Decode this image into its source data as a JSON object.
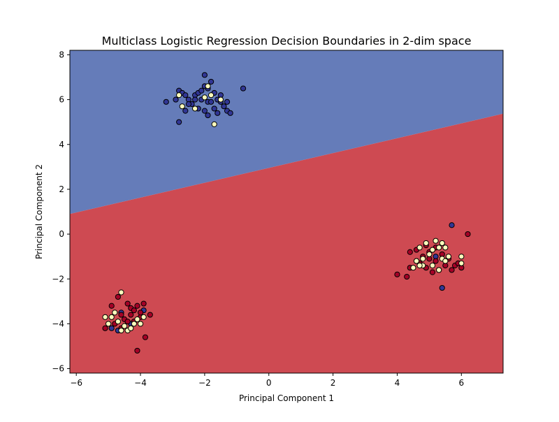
{
  "chart_data": {
    "type": "scatter",
    "title": "Multiclass Logistic Regression Decision Boundaries in 2-dim space",
    "xlabel": "Principal Component 1",
    "ylabel": "Principal Component 2",
    "xlim": [
      -6.2,
      7.3
    ],
    "ylim": [
      -6.2,
      8.2
    ],
    "xticks": [
      -6,
      -4,
      -2,
      0,
      2,
      4,
      6
    ],
    "yticks": [
      -6,
      -4,
      -2,
      0,
      2,
      4,
      6,
      8
    ],
    "grid": false,
    "legend": "none",
    "decision_boundary": {
      "points": [
        [
          -6.2,
          0.9
        ],
        [
          7.3,
          5.37
        ]
      ],
      "regions": [
        {
          "side": "above",
          "color": "#657cb9"
        },
        {
          "side": "below",
          "color": "#ce4a52"
        }
      ]
    },
    "series": [
      {
        "color": "#313695",
        "points": [
          [
            -2.9,
            6.0
          ],
          [
            -2.8,
            6.4
          ],
          [
            -2.7,
            6.3
          ],
          [
            -2.6,
            6.2
          ],
          [
            -2.5,
            6.0
          ],
          [
            -2.4,
            5.8
          ],
          [
            -2.3,
            6.2
          ],
          [
            -2.2,
            6.3
          ],
          [
            -2.1,
            6.4
          ],
          [
            -2.0,
            6.6
          ],
          [
            -1.9,
            6.5
          ],
          [
            -1.8,
            6.8
          ],
          [
            -1.7,
            6.3
          ],
          [
            -1.6,
            6.0
          ],
          [
            -1.5,
            5.9
          ],
          [
            -1.4,
            5.7
          ],
          [
            -1.3,
            5.5
          ],
          [
            -1.2,
            5.4
          ],
          [
            -1.9,
            5.9
          ],
          [
            -2.0,
            5.5
          ],
          [
            -2.2,
            5.6
          ],
          [
            -1.7,
            5.6
          ],
          [
            -1.6,
            5.4
          ],
          [
            -2.6,
            5.5
          ],
          [
            -2.8,
            5.0
          ],
          [
            -3.2,
            5.9
          ],
          [
            -0.8,
            6.5
          ],
          [
            -2.0,
            7.1
          ],
          [
            -1.8,
            5.9
          ],
          [
            -2.3,
            6.0
          ],
          [
            -1.5,
            6.2
          ],
          [
            -2.1,
            6.0
          ],
          [
            -1.3,
            5.9
          ],
          [
            -1.9,
            5.3
          ],
          [
            -2.5,
            5.8
          ],
          [
            -4.6,
            -3.5
          ],
          [
            -4.9,
            -4.2
          ],
          [
            -4.3,
            -4.0
          ],
          [
            -3.9,
            -3.4
          ],
          [
            -4.7,
            -4.3
          ],
          [
            5.7,
            0.4
          ],
          [
            5.4,
            -2.4
          ],
          [
            5.2,
            -1.0
          ]
        ]
      },
      {
        "color": "#a50026",
        "points": [
          [
            -5.1,
            -4.2
          ],
          [
            -4.9,
            -3.2
          ],
          [
            -4.7,
            -2.8
          ],
          [
            -4.6,
            -3.6
          ],
          [
            -4.5,
            -3.8
          ],
          [
            -4.4,
            -3.1
          ],
          [
            -4.3,
            -3.3
          ],
          [
            -4.2,
            -3.4
          ],
          [
            -4.1,
            -3.2
          ],
          [
            -4.0,
            -3.7
          ],
          [
            -3.9,
            -3.1
          ],
          [
            -3.7,
            -3.6
          ],
          [
            -3.85,
            -4.6
          ],
          [
            -4.1,
            -5.2
          ],
          [
            -4.8,
            -4.0
          ],
          [
            -4.6,
            -4.2
          ],
          [
            -4.3,
            -3.6
          ],
          [
            -4.2,
            -3.9
          ],
          [
            -4.4,
            -3.9
          ],
          [
            -4.0,
            -3.5
          ],
          [
            4.0,
            -1.8
          ],
          [
            4.3,
            -1.9
          ],
          [
            4.4,
            -1.5
          ],
          [
            4.4,
            -0.8
          ],
          [
            4.6,
            -0.7
          ],
          [
            4.7,
            -1.3
          ],
          [
            4.8,
            -1.0
          ],
          [
            4.9,
            -0.5
          ],
          [
            5.0,
            -1.1
          ],
          [
            5.1,
            -0.7
          ],
          [
            5.2,
            -1.2
          ],
          [
            5.3,
            -1.6
          ],
          [
            5.4,
            -0.9
          ],
          [
            5.5,
            -1.4
          ],
          [
            5.6,
            -1.1
          ],
          [
            5.7,
            -1.6
          ],
          [
            5.8,
            -1.4
          ],
          [
            5.9,
            -1.3
          ],
          [
            6.0,
            -1.5
          ],
          [
            6.2,
            0.0
          ],
          [
            4.6,
            -1.2
          ],
          [
            4.9,
            -1.5
          ],
          [
            5.0,
            -0.8
          ],
          [
            5.2,
            -0.6
          ],
          [
            5.1,
            -1.7
          ]
        ]
      },
      {
        "color": "#fefebd",
        "points": [
          [
            -2.8,
            6.2
          ],
          [
            -2.7,
            5.7
          ],
          [
            -2.3,
            5.6
          ],
          [
            -1.9,
            6.6
          ],
          [
            -1.8,
            6.2
          ],
          [
            -1.7,
            4.9
          ],
          [
            -1.5,
            6.0
          ],
          [
            -2.0,
            6.1
          ],
          [
            -5.1,
            -3.7
          ],
          [
            -5.0,
            -4.0
          ],
          [
            -4.9,
            -3.7
          ],
          [
            -4.7,
            -3.9
          ],
          [
            -4.6,
            -2.6
          ],
          [
            -4.5,
            -4.1
          ],
          [
            -4.4,
            -4.3
          ],
          [
            -4.3,
            -4.2
          ],
          [
            -4.1,
            -3.8
          ],
          [
            -4.0,
            -4.0
          ],
          [
            -3.9,
            -3.7
          ],
          [
            -4.8,
            -3.5
          ],
          [
            -4.2,
            -4.0
          ],
          [
            -4.6,
            -4.3
          ],
          [
            4.6,
            -1.2
          ],
          [
            4.7,
            -0.6
          ],
          [
            4.8,
            -1.4
          ],
          [
            4.9,
            -0.4
          ],
          [
            5.0,
            -0.9
          ],
          [
            5.1,
            -1.4
          ],
          [
            5.2,
            -0.3
          ],
          [
            5.3,
            -0.6
          ],
          [
            5.4,
            -1.1
          ],
          [
            5.5,
            -0.6
          ],
          [
            5.6,
            -1.0
          ],
          [
            6.0,
            -1.0
          ],
          [
            6.0,
            -1.3
          ],
          [
            4.5,
            -1.5
          ],
          [
            4.8,
            -1.1
          ],
          [
            5.4,
            -0.4
          ],
          [
            5.1,
            -0.7
          ],
          [
            5.3,
            -1.6
          ],
          [
            4.7,
            -1.4
          ],
          [
            5.5,
            -1.2
          ]
        ]
      }
    ]
  }
}
